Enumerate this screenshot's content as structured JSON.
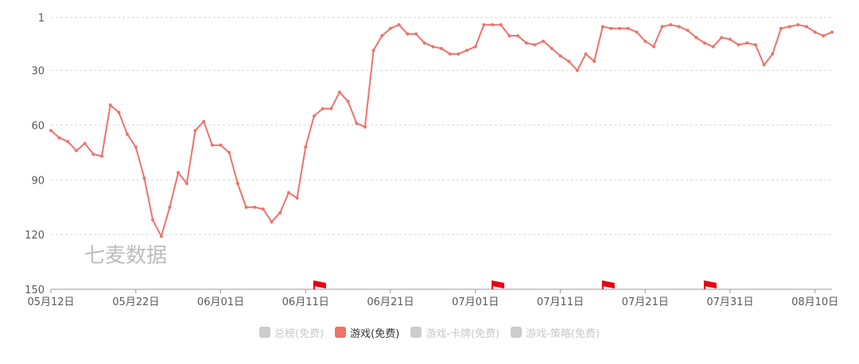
{
  "chart_data": {
    "type": "line",
    "title": "",
    "xlabel": "",
    "ylabel": "",
    "y_axis_inverted": true,
    "ylim": [
      150,
      1
    ],
    "y_ticks": [
      1,
      30,
      60,
      90,
      120,
      150
    ],
    "x_range": [
      "05月12日",
      "08月13日"
    ],
    "x_ticks": [
      "05月12日",
      "05月22日",
      "06月01日",
      "06月11日",
      "06月21日",
      "07月01日",
      "07月11日",
      "07月21日",
      "07月31日",
      "08月10日"
    ],
    "grid": true,
    "legend_position": "bottom-center",
    "series": [
      {
        "name": "游戏(免费)",
        "color": "#f0726a",
        "start_day": 0,
        "values": [
          63,
          67,
          69,
          74,
          70,
          76,
          77,
          49,
          53,
          65,
          72,
          89,
          112,
          121,
          105,
          86,
          92,
          63,
          58,
          71,
          71,
          75,
          92,
          105,
          105,
          106,
          113,
          108,
          97,
          100,
          72,
          55,
          51,
          51,
          42,
          47,
          59,
          61,
          19,
          11,
          7,
          5,
          10,
          10,
          15,
          17,
          18,
          21,
          21,
          19,
          17,
          5,
          5,
          5,
          11,
          11,
          15,
          16,
          14,
          18,
          22,
          25,
          30,
          21,
          25,
          6,
          7,
          7,
          7,
          9,
          14,
          17,
          6,
          5,
          6,
          8,
          12,
          15,
          17,
          12,
          13,
          16,
          15,
          16,
          27,
          21,
          7,
          6,
          5,
          6,
          9,
          11,
          9
        ]
      }
    ],
    "flags": [
      {
        "day": 31,
        "color": "#e60012",
        "icon": "flag-icon"
      },
      {
        "day": 52,
        "color": "#e60012",
        "icon": "flag-icon"
      },
      {
        "day": 65,
        "color": "#e60012",
        "icon": "flag-icon"
      },
      {
        "day": 77,
        "color": "#e60012",
        "icon": "flag-icon"
      }
    ]
  },
  "watermark": "七麦数据",
  "legend": [
    {
      "label": "总榜(免费)",
      "color": "#cccccc",
      "active": false
    },
    {
      "label": "游戏(免费)",
      "color": "#f0726a",
      "active": true
    },
    {
      "label": "游戏-卡牌(免费)",
      "color": "#cccccc",
      "active": false
    },
    {
      "label": "游戏-策略(免费)",
      "color": "#cccccc",
      "active": false
    }
  ]
}
